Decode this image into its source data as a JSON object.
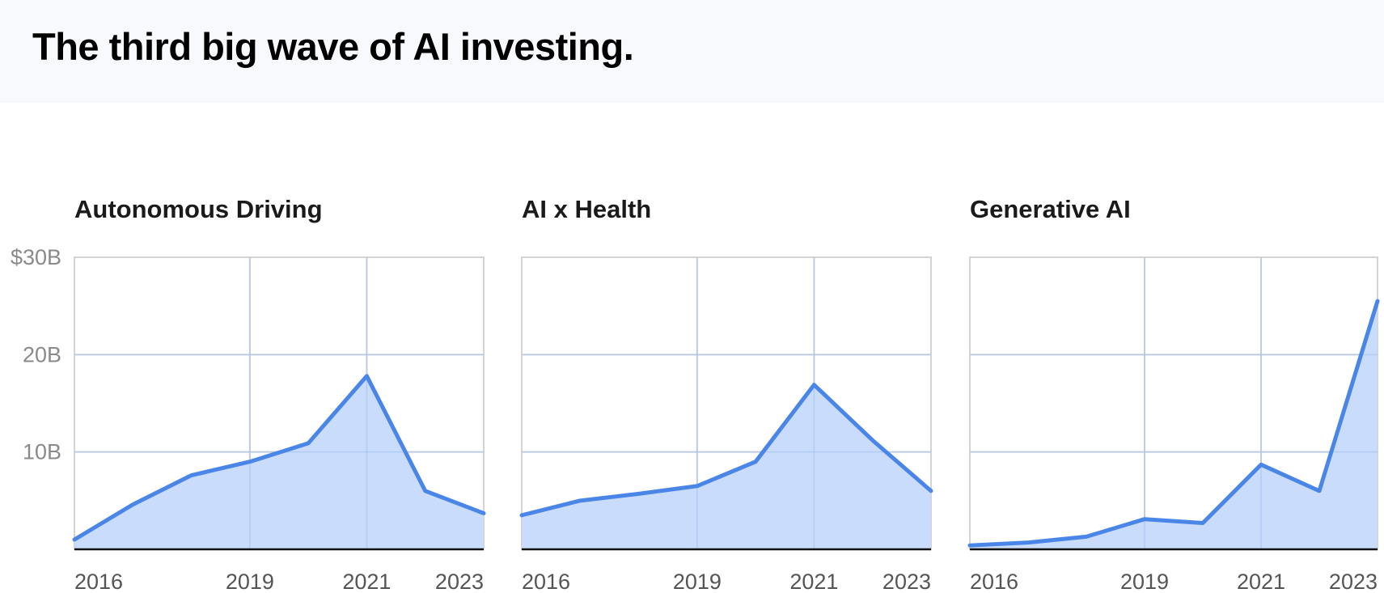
{
  "header": {
    "title": "The third big wave of AI investing."
  },
  "chart_data": [
    {
      "type": "area",
      "title": "Autonomous Driving",
      "x": [
        2016,
        2017,
        2018,
        2019,
        2020,
        2021,
        2022,
        2023
      ],
      "values": [
        1,
        4.6,
        7.6,
        9,
        10.9,
        17.8,
        6,
        3.7
      ],
      "xticks": [
        "2016",
        "2019",
        "2021",
        "2023"
      ],
      "yticks": [
        "$30B",
        "20B",
        "10B"
      ],
      "ylim": [
        0,
        30
      ],
      "grid": true,
      "color": "#4a86e8",
      "fill": "#c5d9fb"
    },
    {
      "type": "area",
      "title": "AI x Health",
      "x": [
        2016,
        2017,
        2018,
        2019,
        2020,
        2021,
        2022,
        2023
      ],
      "values": [
        3.5,
        5,
        5.7,
        6.5,
        9,
        16.9,
        11.2,
        6
      ],
      "xticks": [
        "2016",
        "2019",
        "2021",
        "2023"
      ],
      "yticks": [],
      "ylim": [
        0,
        30
      ],
      "grid": true,
      "color": "#4a86e8",
      "fill": "#c5d9fb"
    },
    {
      "type": "area",
      "title": "Generative AI",
      "x": [
        2016,
        2017,
        2018,
        2019,
        2020,
        2021,
        2022,
        2023
      ],
      "values": [
        0.4,
        0.7,
        1.3,
        3.1,
        2.7,
        8.7,
        6,
        25.5
      ],
      "xticks": [
        "2016",
        "2019",
        "2021",
        "2023"
      ],
      "yticks": [],
      "ylim": [
        0,
        30
      ],
      "grid": true,
      "color": "#4a86e8",
      "fill": "#c5d9fb"
    }
  ]
}
